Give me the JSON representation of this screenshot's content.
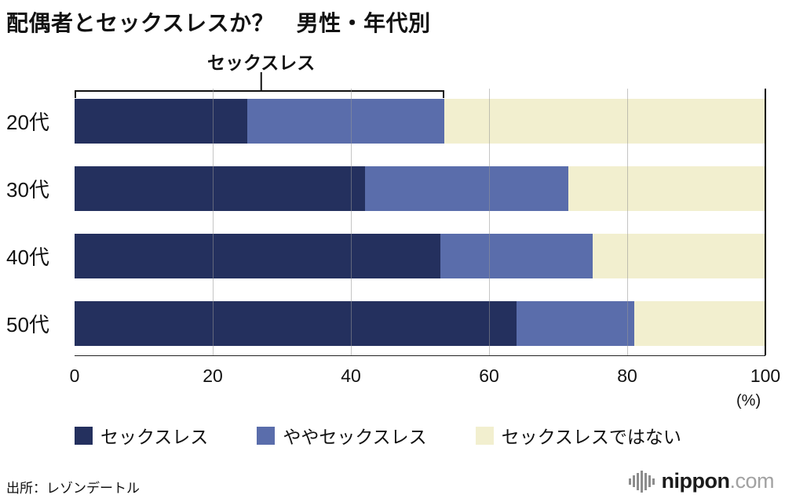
{
  "title": "配偶者とセックスレスか？　男性・年代別",
  "annotation": {
    "label": "セックスレス",
    "from": 0,
    "to": 53.5,
    "connector_x": 27
  },
  "chart_data": {
    "type": "bar",
    "orientation": "horizontal",
    "stacked": true,
    "categories": [
      "20代",
      "30代",
      "40代",
      "50代"
    ],
    "series": [
      {
        "name": "セックスレス",
        "color": "#24305e",
        "values": [
          25,
          42,
          53,
          64
        ]
      },
      {
        "name": "ややセックスレス",
        "color": "#5a6dab",
        "values": [
          28.5,
          29.5,
          22,
          17
        ]
      },
      {
        "name": "セックスレスではない",
        "color": "#f2efcf",
        "values": [
          46.5,
          28.5,
          25,
          19
        ]
      }
    ],
    "xlim": [
      0,
      100
    ],
    "xticks": [
      0,
      20,
      40,
      60,
      80,
      100
    ],
    "x_unit": "(%)",
    "grid": true,
    "legend_position": "bottom"
  },
  "source": "出所：レゾンデートル",
  "logo": {
    "name": "nippon",
    "domain": ".com"
  }
}
